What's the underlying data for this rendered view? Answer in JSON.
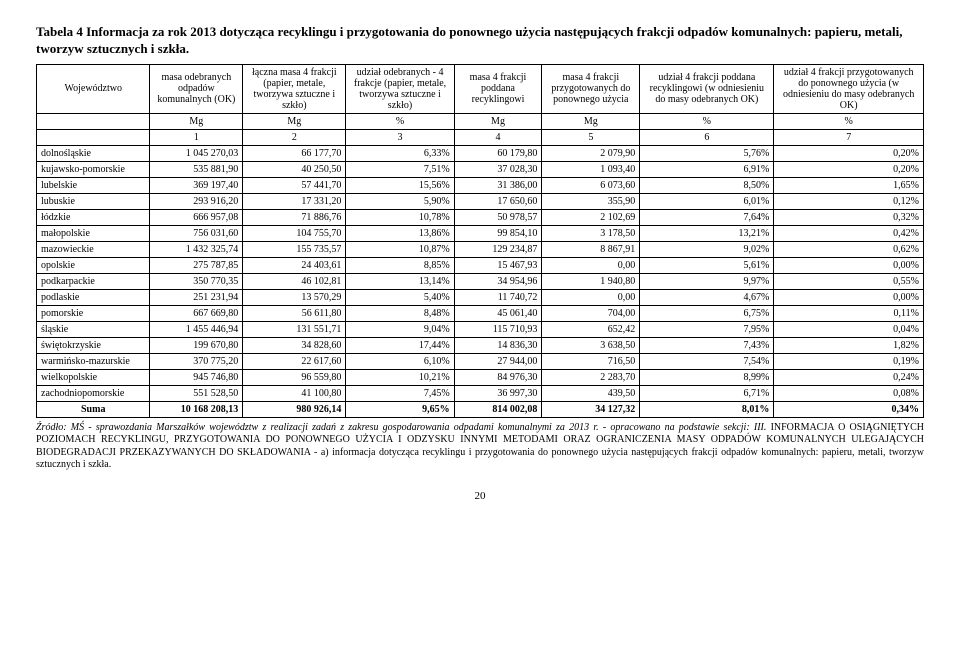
{
  "title": "Tabela 4 Informacja za rok 2013 dotycząca recyklingu i przygotowania do ponownego użycia następujących frakcji odpadów komunalnych: papieru, metali, tworzyw sztucznych i szkła.",
  "headers": {
    "c0": "Województwo",
    "c1": "masa odebranych odpadów komunalnych (OK)",
    "c2": "łączna masa 4 frakcji (papier, metale, tworzywa sztuczne i szkło)",
    "c3": "udział odebranych - 4 frakcje (papier, metale, tworzywa sztuczne i szkło)",
    "c4": "masa 4 frakcji poddana recyklingowi",
    "c5": "masa 4 frakcji przygotowanych do ponownego użycia",
    "c6": "udział 4 frakcji poddana recyklingowi (w odniesieniu do masy odebranych OK)",
    "c7": "udział 4 frakcji przygotowanych do ponownego użycia (w odniesieniu do masy odebranych OK)"
  },
  "units": {
    "c1": "Mg",
    "c2": "Mg",
    "c3": "%",
    "c4": "Mg",
    "c5": "Mg",
    "c6": "%",
    "c7": "%"
  },
  "idx": {
    "c1": "1",
    "c2": "2",
    "c3": "3",
    "c4": "4",
    "c5": "5",
    "c6": "6",
    "c7": "7"
  },
  "rows": [
    {
      "w": "dolnośląskie",
      "c1": "1 045 270,03",
      "c2": "66 177,70",
      "c3": "6,33%",
      "c4": "60 179,80",
      "c5": "2 079,90",
      "c6": "5,76%",
      "c7": "0,20%"
    },
    {
      "w": "kujawsko-pomorskie",
      "c1": "535 881,90",
      "c2": "40 250,50",
      "c3": "7,51%",
      "c4": "37 028,30",
      "c5": "1 093,40",
      "c6": "6,91%",
      "c7": "0,20%"
    },
    {
      "w": "lubelskie",
      "c1": "369 197,40",
      "c2": "57 441,70",
      "c3": "15,56%",
      "c4": "31 386,00",
      "c5": "6 073,60",
      "c6": "8,50%",
      "c7": "1,65%"
    },
    {
      "w": "lubuskie",
      "c1": "293 916,20",
      "c2": "17 331,20",
      "c3": "5,90%",
      "c4": "17 650,60",
      "c5": "355,90",
      "c6": "6,01%",
      "c7": "0,12%"
    },
    {
      "w": "łódzkie",
      "c1": "666 957,08",
      "c2": "71 886,76",
      "c3": "10,78%",
      "c4": "50 978,57",
      "c5": "2 102,69",
      "c6": "7,64%",
      "c7": "0,32%"
    },
    {
      "w": "małopolskie",
      "c1": "756 031,60",
      "c2": "104 755,70",
      "c3": "13,86%",
      "c4": "99 854,10",
      "c5": "3 178,50",
      "c6": "13,21%",
      "c7": "0,42%"
    },
    {
      "w": "mazowieckie",
      "c1": "1 432 325,74",
      "c2": "155 735,57",
      "c3": "10,87%",
      "c4": "129 234,87",
      "c5": "8 867,91",
      "c6": "9,02%",
      "c7": "0,62%"
    },
    {
      "w": "opolskie",
      "c1": "275 787,85",
      "c2": "24 403,61",
      "c3": "8,85%",
      "c4": "15 467,93",
      "c5": "0,00",
      "c6": "5,61%",
      "c7": "0,00%"
    },
    {
      "w": "podkarpackie",
      "c1": "350 770,35",
      "c2": "46 102,81",
      "c3": "13,14%",
      "c4": "34 954,96",
      "c5": "1 940,80",
      "c6": "9,97%",
      "c7": "0,55%"
    },
    {
      "w": "podlaskie",
      "c1": "251 231,94",
      "c2": "13 570,29",
      "c3": "5,40%",
      "c4": "11 740,72",
      "c5": "0,00",
      "c6": "4,67%",
      "c7": "0,00%"
    },
    {
      "w": "pomorskie",
      "c1": "667 669,80",
      "c2": "56 611,80",
      "c3": "8,48%",
      "c4": "45 061,40",
      "c5": "704,00",
      "c6": "6,75%",
      "c7": "0,11%"
    },
    {
      "w": "śląskie",
      "c1": "1 455 446,94",
      "c2": "131 551,71",
      "c3": "9,04%",
      "c4": "115 710,93",
      "c5": "652,42",
      "c6": "7,95%",
      "c7": "0,04%"
    },
    {
      "w": "świętokrzyskie",
      "c1": "199 670,80",
      "c2": "34 828,60",
      "c3": "17,44%",
      "c4": "14 836,30",
      "c5": "3 638,50",
      "c6": "7,43%",
      "c7": "1,82%"
    },
    {
      "w": "warmińsko-mazurskie",
      "c1": "370 775,20",
      "c2": "22 617,60",
      "c3": "6,10%",
      "c4": "27 944,00",
      "c5": "716,50",
      "c6": "7,54%",
      "c7": "0,19%"
    },
    {
      "w": "wielkopolskie",
      "c1": "945 746,80",
      "c2": "96 559,80",
      "c3": "10,21%",
      "c4": "84 976,30",
      "c5": "2 283,70",
      "c6": "8,99%",
      "c7": "0,24%"
    },
    {
      "w": "zachodniopomorskie",
      "c1": "551 528,50",
      "c2": "41 100,80",
      "c3": "7,45%",
      "c4": "36 997,30",
      "c5": "439,50",
      "c6": "6,71%",
      "c7": "0,08%"
    }
  ],
  "sum": {
    "w": "Suma",
    "c1": "10 168 208,13",
    "c2": "980 926,14",
    "c3": "9,65%",
    "c4": "814 002,08",
    "c5": "34 127,32",
    "c6": "8,01%",
    "c7": "0,34%"
  },
  "footnote_src": "Źródło: MŚ - sprawozdania Marszałków województw z realizacji zadań z zakresu gospodarowania odpadami komunalnymi za 2013 r. - opracowano na podstawie sekcji: III. ",
  "footnote_rest": "INFORMACJA O OSIĄGNIĘTYCH POZIOMACH RECYKLINGU, PRZYGOTOWANIA DO PONOWNEGO UŻYCIA I ODZYSKU INNYMI METODAMI ORAZ OGRANICZENIA MASY ODPADÓW KOMUNALNYCH ULEGAJĄCYCH BIODEGRADACJI PRZEKAZYWANYCH DO SKŁADOWANIA - a) informacja dotycząca recyklingu i przygotowania do ponownego użycia następujących frakcji odpadów komunalnych: papieru, metali, tworzyw sztucznych i szkła.",
  "page_number": "20"
}
